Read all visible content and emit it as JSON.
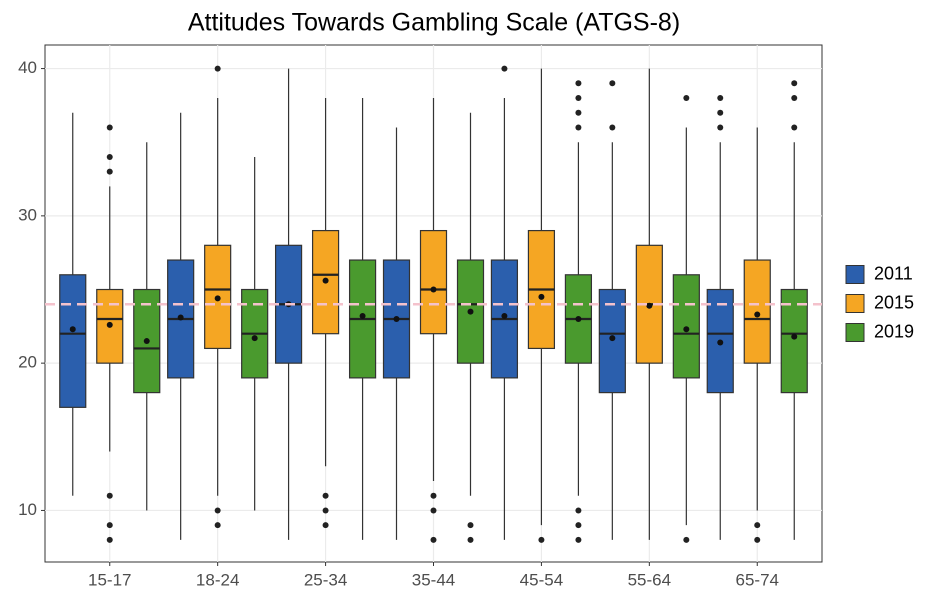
{
  "chart_data": {
    "type": "boxplot",
    "title": "Attitudes Towards Gambling Scale (ATGS-8)",
    "categories": [
      "15-17",
      "18-24",
      "25-34",
      "35-44",
      "45-54",
      "55-64",
      "65-74"
    ],
    "ylim": [
      6.5,
      41.6
    ],
    "yticks": [
      10,
      20,
      30,
      40
    ],
    "grid": true,
    "legend": "right",
    "reference_line": {
      "value": 24,
      "color": "#f4c2cc"
    },
    "series": [
      {
        "name": "2011",
        "color": "#2b5fad",
        "boxes": [
          {
            "min": 11,
            "q1": 17,
            "median": 22,
            "q3": 26,
            "max": 37,
            "mean": 22.3,
            "outliers": []
          },
          {
            "min": 8,
            "q1": 19,
            "median": 23,
            "q3": 27,
            "max": 37,
            "mean": 23.1,
            "outliers": []
          },
          {
            "min": 8,
            "q1": 20,
            "median": 24,
            "q3": 28,
            "max": 40,
            "mean": 24,
            "outliers": []
          },
          {
            "min": 8,
            "q1": 19,
            "median": 23,
            "q3": 27,
            "max": 36,
            "mean": 23,
            "outliers": []
          },
          {
            "min": 8,
            "q1": 19,
            "median": 23,
            "q3": 27,
            "max": 38,
            "mean": 23.2,
            "outliers": [
              40
            ]
          },
          {
            "min": 8,
            "q1": 18,
            "median": 22,
            "q3": 25,
            "max": 35,
            "mean": 21.7,
            "outliers": [
              39,
              36
            ]
          },
          {
            "min": 8,
            "q1": 18,
            "median": 22,
            "q3": 25,
            "max": 35,
            "mean": 21.4,
            "outliers": [
              38,
              37,
              36
            ]
          }
        ]
      },
      {
        "name": "2015",
        "color": "#f5a623",
        "boxes": [
          {
            "min": 14,
            "q1": 20,
            "median": 23,
            "q3": 25,
            "max": 32,
            "mean": 22.6,
            "outliers": [
              36,
              34,
              33,
              11,
              9,
              8
            ]
          },
          {
            "min": 11,
            "q1": 21,
            "median": 25,
            "q3": 28,
            "max": 38,
            "mean": 24.4,
            "outliers": [
              40,
              10,
              9
            ]
          },
          {
            "min": 13,
            "q1": 22,
            "median": 26,
            "q3": 29,
            "max": 38,
            "mean": 25.6,
            "outliers": [
              11,
              10,
              9
            ]
          },
          {
            "min": 12,
            "q1": 22,
            "median": 25,
            "q3": 29,
            "max": 38,
            "mean": 25,
            "outliers": [
              11,
              10,
              8
            ]
          },
          {
            "min": 9,
            "q1": 21,
            "median": 25,
            "q3": 29,
            "max": 40,
            "mean": 24.5,
            "outliers": [
              8
            ]
          },
          {
            "min": 8,
            "q1": 20,
            "median": 24,
            "q3": 28,
            "max": 40,
            "mean": 23.9,
            "outliers": []
          },
          {
            "min": 10,
            "q1": 20,
            "median": 23,
            "q3": 27,
            "max": 36,
            "mean": 23.3,
            "outliers": [
              9,
              8
            ]
          }
        ]
      },
      {
        "name": "2019",
        "color": "#4a9a2e",
        "boxes": [
          {
            "min": 10,
            "q1": 18,
            "median": 21,
            "q3": 25,
            "max": 35,
            "mean": 21.5,
            "outliers": []
          },
          {
            "min": 10,
            "q1": 19,
            "median": 22,
            "q3": 25,
            "max": 34,
            "mean": 21.7,
            "outliers": []
          },
          {
            "min": 8,
            "q1": 19,
            "median": 23,
            "q3": 27,
            "max": 38,
            "mean": 23.2,
            "outliers": []
          },
          {
            "min": 11,
            "q1": 20,
            "median": 24,
            "q3": 27,
            "max": 37,
            "mean": 23.5,
            "outliers": [
              9,
              8
            ]
          },
          {
            "min": 11,
            "q1": 20,
            "median": 23,
            "q3": 26,
            "max": 35,
            "mean": 23,
            "outliers": [
              39,
              38,
              37,
              36,
              10,
              9,
              8
            ]
          },
          {
            "min": 9,
            "q1": 19,
            "median": 22,
            "q3": 26,
            "max": 36,
            "mean": 22.3,
            "outliers": [
              38,
              8
            ]
          },
          {
            "min": 8,
            "q1": 18,
            "median": 22,
            "q3": 25,
            "max": 35,
            "mean": 21.8,
            "outliers": [
              39,
              38,
              36
            ]
          }
        ]
      }
    ]
  }
}
